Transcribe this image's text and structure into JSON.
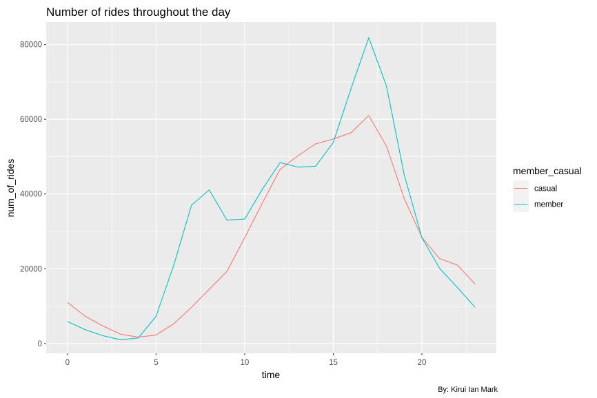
{
  "chart_data": {
    "type": "line",
    "title": "Number of rides throughout the day",
    "xlabel": "time",
    "ylabel": "num_of_rides",
    "caption": "By: Kirui Ian Mark",
    "xlim": [
      -1.2,
      24.2
    ],
    "ylim": [
      -2600,
      86000
    ],
    "x_ticks": [
      0,
      5,
      10,
      15,
      20
    ],
    "x_tick_labels": [
      "0",
      "5",
      "10",
      "15",
      "20"
    ],
    "y_ticks": [
      0,
      20000,
      40000,
      60000,
      80000
    ],
    "y_tick_labels": [
      "0",
      "20000",
      "40000",
      "60000",
      "80000"
    ],
    "grid": true,
    "panel_background": "#ebebeb",
    "legend": {
      "title": "member_casual",
      "placement": "right"
    },
    "x": [
      0,
      1,
      2,
      3,
      4,
      5,
      6,
      7,
      8,
      9,
      10,
      11,
      12,
      13,
      14,
      15,
      16,
      17,
      18,
      19,
      20,
      21,
      22,
      23
    ],
    "series": [
      {
        "name": "casual",
        "color": "#f8766d",
        "values": [
          11000,
          7300,
          4700,
          2500,
          1700,
          2300,
          5300,
          9700,
          14500,
          19300,
          28300,
          37600,
          46600,
          50200,
          53400,
          54700,
          56400,
          61000,
          52800,
          38800,
          28400,
          22700,
          21000,
          15900
        ]
      },
      {
        "name": "member",
        "color": "#00bfc4",
        "values": [
          5900,
          3700,
          2100,
          1000,
          1500,
          7300,
          21000,
          37000,
          41100,
          33000,
          33300,
          41300,
          48400,
          47200,
          47400,
          53800,
          68200,
          81800,
          68900,
          45200,
          28300,
          20100,
          15000,
          9700
        ]
      }
    ]
  }
}
